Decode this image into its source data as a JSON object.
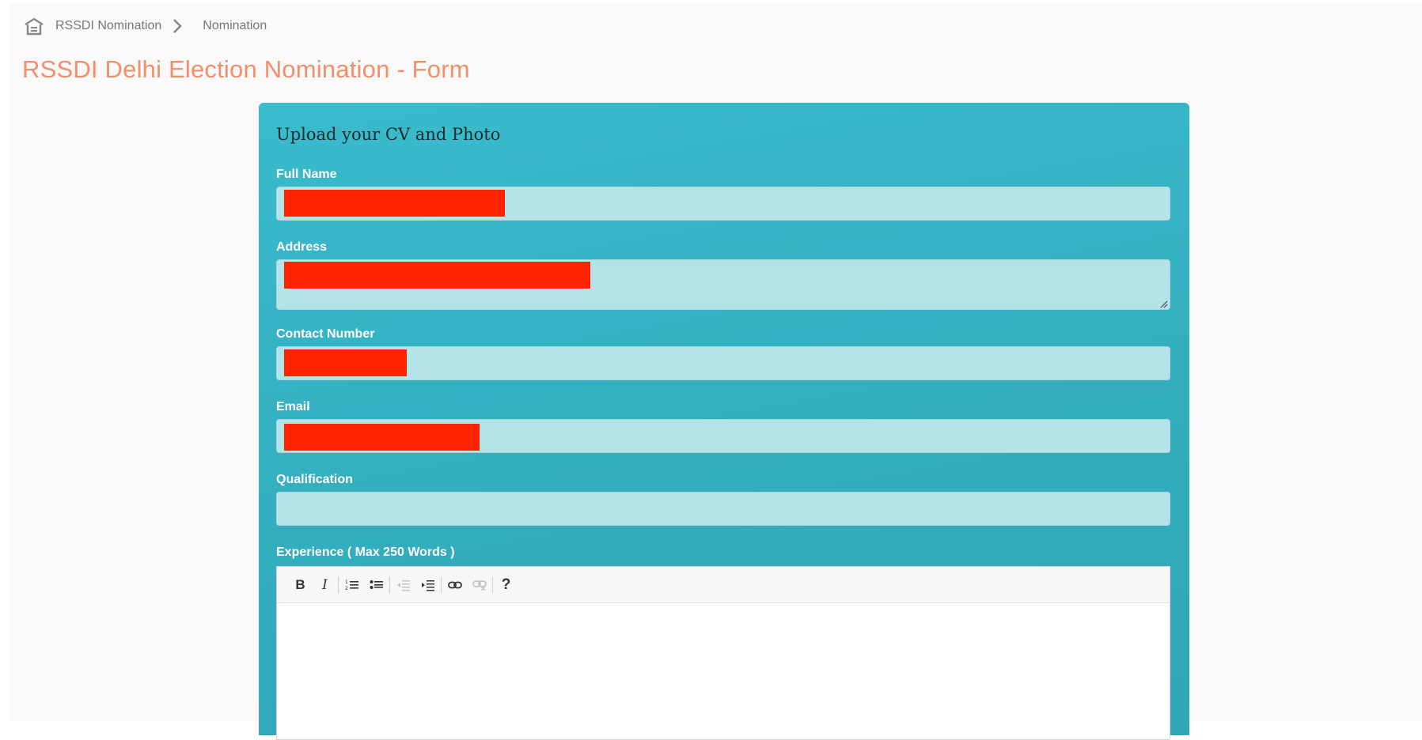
{
  "breadcrumb": {
    "home_icon": "home-icon",
    "items": [
      "RSSDI Nomination",
      "Nomination"
    ]
  },
  "page": {
    "title": "RSSDI Delhi Election Nomination - Form"
  },
  "form": {
    "heading": "Upload your CV and Photo",
    "fields": {
      "full_name": {
        "label": "Full Name",
        "value_redacted": true
      },
      "address": {
        "label": "Address",
        "value_redacted": true
      },
      "contact_number": {
        "label": "Contact Number",
        "value_redacted": true
      },
      "email": {
        "label": "Email",
        "value_redacted": true
      },
      "qualification": {
        "label": "Qualification",
        "value": ""
      }
    },
    "experience": {
      "label": "Experience ( Max 250 Words )",
      "toolbar": [
        "B",
        "I",
        "numbered-list-icon",
        "bulleted-list-icon",
        "outdent-icon",
        "indent-icon",
        "link-icon",
        "unlink-icon",
        "?"
      ]
    }
  },
  "colors": {
    "title": "#f0906b",
    "card": "#35b2c3",
    "input": "#b6e3e8",
    "redaction": "#ff2400"
  }
}
